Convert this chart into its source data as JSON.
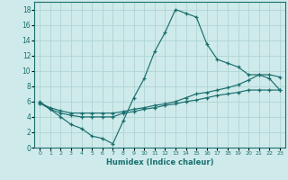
{
  "xlabel": "Humidex (Indice chaleur)",
  "ylabel": "",
  "bg_color": "#ceeaea",
  "grid_color": "#b0d4d4",
  "line_color": "#1a6e6e",
  "xlim": [
    -0.5,
    23.5
  ],
  "ylim": [
    0,
    19
  ],
  "xticks": [
    0,
    1,
    2,
    3,
    4,
    5,
    6,
    7,
    8,
    9,
    10,
    11,
    12,
    13,
    14,
    15,
    16,
    17,
    18,
    19,
    20,
    21,
    22,
    23
  ],
  "yticks": [
    0,
    2,
    4,
    6,
    8,
    10,
    12,
    14,
    16,
    18
  ],
  "line1_x": [
    0,
    1,
    2,
    3,
    4,
    5,
    6,
    7,
    8,
    9,
    10,
    11,
    12,
    13,
    14,
    15,
    16,
    17,
    18,
    19,
    20,
    21,
    22,
    23
  ],
  "line1_y": [
    6.0,
    5.0,
    4.0,
    3.0,
    2.5,
    1.5,
    1.2,
    0.5,
    3.5,
    6.5,
    9.0,
    12.5,
    15.0,
    18.0,
    17.5,
    17.0,
    13.5,
    11.5,
    11.0,
    10.5,
    9.5,
    9.5,
    9.0,
    7.5
  ],
  "line2_x": [
    0,
    1,
    2,
    3,
    4,
    5,
    6,
    7,
    8,
    9,
    10,
    11,
    12,
    13,
    14,
    15,
    16,
    17,
    18,
    19,
    20,
    21,
    22,
    23
  ],
  "line2_y": [
    5.8,
    5.2,
    4.8,
    4.5,
    4.5,
    4.5,
    4.5,
    4.5,
    4.7,
    5.0,
    5.2,
    5.5,
    5.7,
    6.0,
    6.5,
    7.0,
    7.2,
    7.5,
    7.8,
    8.2,
    8.8,
    9.5,
    9.5,
    9.2
  ],
  "line3_x": [
    0,
    1,
    2,
    3,
    4,
    5,
    6,
    7,
    8,
    9,
    10,
    11,
    12,
    13,
    14,
    15,
    16,
    17,
    18,
    19,
    20,
    21,
    22,
    23
  ],
  "line3_y": [
    5.8,
    5.0,
    4.5,
    4.2,
    4.0,
    4.0,
    4.0,
    4.0,
    4.5,
    4.7,
    5.0,
    5.2,
    5.5,
    5.7,
    6.0,
    6.2,
    6.5,
    6.8,
    7.0,
    7.2,
    7.5,
    7.5,
    7.5,
    7.5
  ]
}
